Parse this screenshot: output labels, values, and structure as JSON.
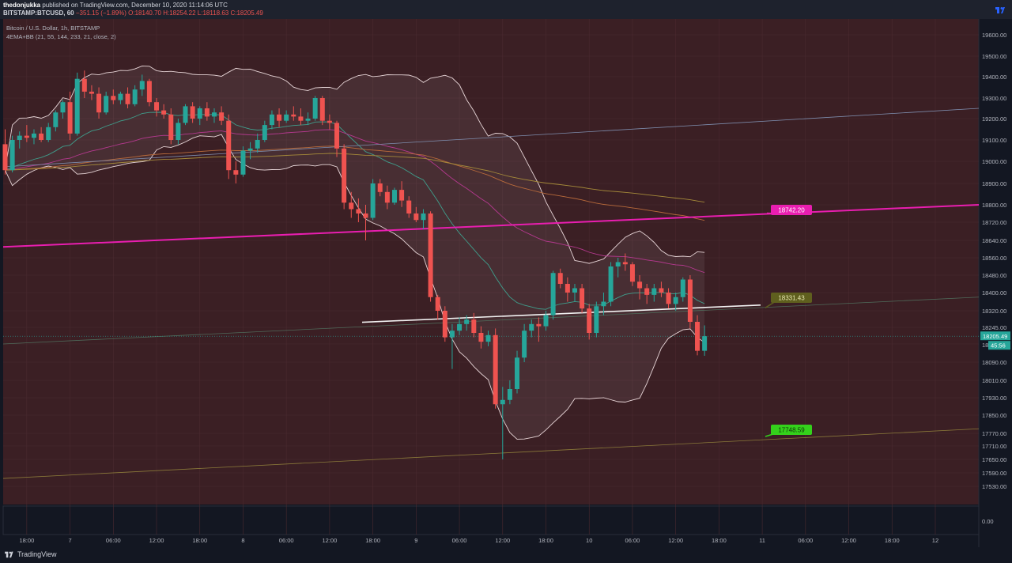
{
  "header": {
    "author": "thedonjukka",
    "published": "published on TradingView.com, December 10, 2020 11:14:06 UTC",
    "symbol": "BITSTAMP:BTCUSD, 60",
    "change": "−351.15 (−1.89%)",
    "ohlc": "O:18140.70 H:18254.22 L:18118.63 C:18205.49"
  },
  "legend": {
    "title": "Bitcoin / U.S. Dollar, 1h, BITSTAMP",
    "indicator": "4EMA+BB (21, 55, 144, 233, 21, close, 2)"
  },
  "footer": {
    "brand": "TradingView"
  },
  "colors": {
    "background": "#3b1f24",
    "up": "#26a69a",
    "down": "#ef5350",
    "magenta_line": "#e91eb0",
    "green_label": "#34d11b",
    "olive_label": "#5f5f1e"
  },
  "chart_data": {
    "type": "candlestick",
    "y_ticks": [
      19600,
      19500,
      19400,
      19300,
      19200,
      19100,
      19000,
      18900,
      18800,
      18720,
      18640,
      18560,
      18480,
      18400,
      18320,
      18245,
      18170,
      18090,
      18010,
      17930,
      17850,
      17770,
      17710,
      17650,
      17590,
      17530
    ],
    "y_tick_labels": [
      "19600.00",
      "19500.00",
      "19400.00",
      "19300.00",
      "19200.00",
      "19100.00",
      "19000.00",
      "18900.00",
      "18800.00",
      "18720.00",
      "18640.00",
      "18560.00",
      "18480.00",
      "18400.00",
      "18320.00",
      "18245.00",
      "",
      "18090.00",
      "18010.00",
      "17930.00",
      "17850.00",
      "17770.00",
      "17710.00",
      "17650.00",
      "17590.00",
      "17530.00"
    ],
    "x_labels": [
      {
        "i": 3,
        "t": "18:00"
      },
      {
        "i": 9,
        "t": "7"
      },
      {
        "i": 15,
        "t": "06:00"
      },
      {
        "i": 21,
        "t": "12:00"
      },
      {
        "i": 27,
        "t": "18:00"
      },
      {
        "i": 33,
        "t": "8"
      },
      {
        "i": 39,
        "t": "06:00"
      },
      {
        "i": 45,
        "t": "12:00"
      },
      {
        "i": 51,
        "t": "18:00"
      },
      {
        "i": 57,
        "t": "9"
      },
      {
        "i": 63,
        "t": "06:00"
      },
      {
        "i": 69,
        "t": "12:00"
      },
      {
        "i": 75,
        "t": "18:00"
      },
      {
        "i": 81,
        "t": "10"
      },
      {
        "i": 87,
        "t": "06:00"
      },
      {
        "i": 93,
        "t": "12:00"
      },
      {
        "i": 99,
        "t": "18:00"
      },
      {
        "i": 105,
        "t": "11"
      },
      {
        "i": 111,
        "t": "06:00"
      },
      {
        "i": 117,
        "t": "12:00"
      },
      {
        "i": 123,
        "t": "18:00"
      },
      {
        "i": 129,
        "t": "12"
      }
    ],
    "last_price": "18205.49",
    "countdown": "45:56",
    "price_label_partial": "18",
    "indicator_pane_value": "0.00",
    "levels": [
      {
        "label": "18742.20",
        "color": "#e91eb0"
      },
      {
        "label": "18331.43",
        "color": "#5f5f1e"
      },
      {
        "label": "17748.59",
        "color": "#34d11b"
      }
    ],
    "candles": [
      {
        "o": 19080,
        "h": 19150,
        "l": 18940,
        "c": 18960
      },
      {
        "o": 18960,
        "h": 19120,
        "l": 18950,
        "c": 19100
      },
      {
        "o": 19100,
        "h": 19140,
        "l": 19060,
        "c": 19120
      },
      {
        "o": 19120,
        "h": 19170,
        "l": 19090,
        "c": 19110
      },
      {
        "o": 19110,
        "h": 19150,
        "l": 19080,
        "c": 19130
      },
      {
        "o": 19130,
        "h": 19160,
        "l": 19090,
        "c": 19100
      },
      {
        "o": 19100,
        "h": 19180,
        "l": 19090,
        "c": 19160
      },
      {
        "o": 19160,
        "h": 19240,
        "l": 19140,
        "c": 19230
      },
      {
        "o": 19230,
        "h": 19290,
        "l": 19200,
        "c": 19280
      },
      {
        "o": 19280,
        "h": 19330,
        "l": 19100,
        "c": 19130
      },
      {
        "o": 19130,
        "h": 19420,
        "l": 19120,
        "c": 19390
      },
      {
        "o": 19390,
        "h": 19430,
        "l": 19300,
        "c": 19330
      },
      {
        "o": 19330,
        "h": 19360,
        "l": 19290,
        "c": 19320
      },
      {
        "o": 19320,
        "h": 19350,
        "l": 19200,
        "c": 19230
      },
      {
        "o": 19230,
        "h": 19330,
        "l": 19220,
        "c": 19310
      },
      {
        "o": 19310,
        "h": 19340,
        "l": 19270,
        "c": 19290
      },
      {
        "o": 19290,
        "h": 19330,
        "l": 19270,
        "c": 19320
      },
      {
        "o": 19320,
        "h": 19350,
        "l": 19250,
        "c": 19270
      },
      {
        "o": 19270,
        "h": 19360,
        "l": 19260,
        "c": 19340
      },
      {
        "o": 19340,
        "h": 19410,
        "l": 19310,
        "c": 19380
      },
      {
        "o": 19380,
        "h": 19390,
        "l": 19260,
        "c": 19280
      },
      {
        "o": 19280,
        "h": 19300,
        "l": 19210,
        "c": 19240
      },
      {
        "o": 19240,
        "h": 19270,
        "l": 19200,
        "c": 19220
      },
      {
        "o": 19220,
        "h": 19250,
        "l": 19080,
        "c": 19100
      },
      {
        "o": 19100,
        "h": 19200,
        "l": 19080,
        "c": 19180
      },
      {
        "o": 19180,
        "h": 19270,
        "l": 19170,
        "c": 19260
      },
      {
        "o": 19260,
        "h": 19280,
        "l": 19180,
        "c": 19200
      },
      {
        "o": 19200,
        "h": 19260,
        "l": 19170,
        "c": 19250
      },
      {
        "o": 19250,
        "h": 19280,
        "l": 19190,
        "c": 19210
      },
      {
        "o": 19210,
        "h": 19250,
        "l": 19180,
        "c": 19230
      },
      {
        "o": 19230,
        "h": 19260,
        "l": 19170,
        "c": 19190
      },
      {
        "o": 19190,
        "h": 19220,
        "l": 18920,
        "c": 18960
      },
      {
        "o": 18960,
        "h": 19000,
        "l": 18900,
        "c": 18940
      },
      {
        "o": 18940,
        "h": 19070,
        "l": 18930,
        "c": 19050
      },
      {
        "o": 19050,
        "h": 19090,
        "l": 19010,
        "c": 19060
      },
      {
        "o": 19060,
        "h": 19130,
        "l": 19040,
        "c": 19100
      },
      {
        "o": 19100,
        "h": 19190,
        "l": 19090,
        "c": 19170
      },
      {
        "o": 19170,
        "h": 19240,
        "l": 19150,
        "c": 19220
      },
      {
        "o": 19220,
        "h": 19250,
        "l": 19160,
        "c": 19190
      },
      {
        "o": 19190,
        "h": 19240,
        "l": 19180,
        "c": 19220
      },
      {
        "o": 19220,
        "h": 19260,
        "l": 19190,
        "c": 19210
      },
      {
        "o": 19210,
        "h": 19250,
        "l": 19170,
        "c": 19190
      },
      {
        "o": 19190,
        "h": 19230,
        "l": 19170,
        "c": 19200
      },
      {
        "o": 19200,
        "h": 19310,
        "l": 19190,
        "c": 19300
      },
      {
        "o": 19300,
        "h": 19310,
        "l": 19170,
        "c": 19190
      },
      {
        "o": 19190,
        "h": 19220,
        "l": 19150,
        "c": 19180
      },
      {
        "o": 19180,
        "h": 19190,
        "l": 19020,
        "c": 19060
      },
      {
        "o": 19060,
        "h": 19080,
        "l": 18780,
        "c": 18810
      },
      {
        "o": 18810,
        "h": 18860,
        "l": 18740,
        "c": 18780
      },
      {
        "o": 18780,
        "h": 18830,
        "l": 18720,
        "c": 18760
      },
      {
        "o": 18760,
        "h": 18800,
        "l": 18640,
        "c": 18740
      },
      {
        "o": 18740,
        "h": 18920,
        "l": 18730,
        "c": 18900
      },
      {
        "o": 18900,
        "h": 18920,
        "l": 18840,
        "c": 18860
      },
      {
        "o": 18860,
        "h": 18890,
        "l": 18780,
        "c": 18810
      },
      {
        "o": 18810,
        "h": 18880,
        "l": 18800,
        "c": 18870
      },
      {
        "o": 18870,
        "h": 18910,
        "l": 18790,
        "c": 18820
      },
      {
        "o": 18820,
        "h": 18840,
        "l": 18740,
        "c": 18760
      },
      {
        "o": 18760,
        "h": 18790,
        "l": 18720,
        "c": 18730
      },
      {
        "o": 18730,
        "h": 18780,
        "l": 18690,
        "c": 18760
      },
      {
        "o": 18760,
        "h": 18770,
        "l": 18360,
        "c": 18380
      },
      {
        "o": 18380,
        "h": 18390,
        "l": 18280,
        "c": 18320
      },
      {
        "o": 18320,
        "h": 18340,
        "l": 18180,
        "c": 18200
      },
      {
        "o": 18200,
        "h": 18260,
        "l": 18060,
        "c": 18230
      },
      {
        "o": 18230,
        "h": 18290,
        "l": 18210,
        "c": 18260
      },
      {
        "o": 18260,
        "h": 18300,
        "l": 18230,
        "c": 18280
      },
      {
        "o": 18280,
        "h": 18310,
        "l": 18200,
        "c": 18220
      },
      {
        "o": 18220,
        "h": 18250,
        "l": 18150,
        "c": 18180
      },
      {
        "o": 18180,
        "h": 18230,
        "l": 18160,
        "c": 18210
      },
      {
        "o": 18210,
        "h": 18240,
        "l": 17880,
        "c": 17900
      },
      {
        "o": 17900,
        "h": 17980,
        "l": 17650,
        "c": 17920
      },
      {
        "o": 17920,
        "h": 18010,
        "l": 17900,
        "c": 17970
      },
      {
        "o": 17970,
        "h": 18140,
        "l": 17950,
        "c": 18110
      },
      {
        "o": 18110,
        "h": 18260,
        "l": 18090,
        "c": 18230
      },
      {
        "o": 18230,
        "h": 18280,
        "l": 18200,
        "c": 18260
      },
      {
        "o": 18260,
        "h": 18290,
        "l": 18180,
        "c": 18250
      },
      {
        "o": 18250,
        "h": 18320,
        "l": 18230,
        "c": 18300
      },
      {
        "o": 18300,
        "h": 18500,
        "l": 18280,
        "c": 18490
      },
      {
        "o": 18490,
        "h": 18510,
        "l": 18420,
        "c": 18440
      },
      {
        "o": 18440,
        "h": 18470,
        "l": 18360,
        "c": 18400
      },
      {
        "o": 18400,
        "h": 18440,
        "l": 18360,
        "c": 18420
      },
      {
        "o": 18420,
        "h": 18440,
        "l": 18310,
        "c": 18330
      },
      {
        "o": 18330,
        "h": 18350,
        "l": 18190,
        "c": 18220
      },
      {
        "o": 18220,
        "h": 18360,
        "l": 18200,
        "c": 18340
      },
      {
        "o": 18340,
        "h": 18400,
        "l": 18300,
        "c": 18360
      },
      {
        "o": 18360,
        "h": 18540,
        "l": 18340,
        "c": 18520
      },
      {
        "o": 18520,
        "h": 18560,
        "l": 18470,
        "c": 18540
      },
      {
        "o": 18540,
        "h": 18580,
        "l": 18500,
        "c": 18530
      },
      {
        "o": 18530,
        "h": 18540,
        "l": 18430,
        "c": 18450
      },
      {
        "o": 18450,
        "h": 18480,
        "l": 18370,
        "c": 18420
      },
      {
        "o": 18420,
        "h": 18440,
        "l": 18350,
        "c": 18390
      },
      {
        "o": 18390,
        "h": 18440,
        "l": 18360,
        "c": 18420
      },
      {
        "o": 18420,
        "h": 18450,
        "l": 18380,
        "c": 18400
      },
      {
        "o": 18400,
        "h": 18420,
        "l": 18330,
        "c": 18350
      },
      {
        "o": 18350,
        "h": 18400,
        "l": 18320,
        "c": 18380
      },
      {
        "o": 18380,
        "h": 18470,
        "l": 18360,
        "c": 18460
      },
      {
        "o": 18460,
        "h": 18480,
        "l": 18240,
        "c": 18270
      },
      {
        "o": 18270,
        "h": 18300,
        "l": 18120,
        "c": 18140
      },
      {
        "o": 18140,
        "h": 18254,
        "l": 18118,
        "c": 18205
      }
    ]
  }
}
